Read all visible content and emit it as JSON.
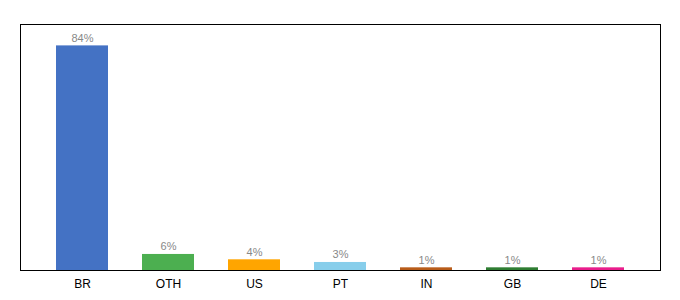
{
  "chart_data": {
    "type": "bar",
    "categories": [
      "BR",
      "OTH",
      "US",
      "PT",
      "IN",
      "GB",
      "DE"
    ],
    "values": [
      84,
      6,
      4,
      3,
      1,
      1,
      1
    ],
    "value_labels": [
      "84%",
      "6%",
      "4%",
      "3%",
      "1%",
      "1%",
      "1%"
    ],
    "colors": [
      "#4472C4",
      "#4CAF50",
      "#FFA500",
      "#87CEEB",
      "#B85C1A",
      "#2E7D32",
      "#E91E8C"
    ],
    "ylim": [
      0,
      92
    ],
    "data_labels": true,
    "tick_labels": "x",
    "grid": false
  }
}
